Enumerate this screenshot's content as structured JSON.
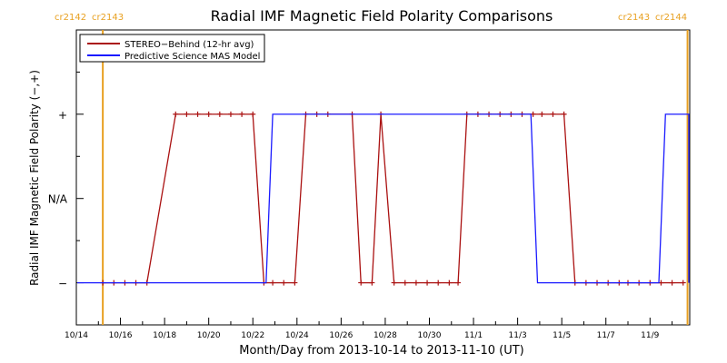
{
  "chart_data": {
    "type": "line",
    "title": "Radial IMF Magnetic Field Polarity Comparisons",
    "xlabel": "Month/Day from 2013-10-14 to 2013-11-10 (UT)",
    "ylabel": "Radial IMF Magnetic Field Polarity (−,+)",
    "x_range_days": [
      0,
      27.8
    ],
    "x_ticks": [
      {
        "day": 0,
        "label": "10/14"
      },
      {
        "day": 2,
        "label": "10/16"
      },
      {
        "day": 4,
        "label": "10/18"
      },
      {
        "day": 6,
        "label": "10/20"
      },
      {
        "day": 8,
        "label": "10/22"
      },
      {
        "day": 10,
        "label": "10/24"
      },
      {
        "day": 12,
        "label": "10/26"
      },
      {
        "day": 14,
        "label": "10/28"
      },
      {
        "day": 16,
        "label": "10/30"
      },
      {
        "day": 18,
        "label": "11/1"
      },
      {
        "day": 20,
        "label": "11/3"
      },
      {
        "day": 22,
        "label": "11/5"
      },
      {
        "day": 24,
        "label": "11/7"
      },
      {
        "day": 26,
        "label": "11/9"
      }
    ],
    "y_ticks": [
      {
        "value": 1,
        "label": "+"
      },
      {
        "value": 0,
        "label": "N/A"
      },
      {
        "value": -1,
        "label": "−"
      }
    ],
    "ylim": [
      -1.5,
      2.0
    ],
    "carrington_markers": [
      {
        "day": 1.2,
        "label_left": "cr2142",
        "label_right": "cr2143",
        "color": "#e8a020"
      },
      {
        "day": 27.7,
        "label_left": "cr2143",
        "label_right": "cr2144",
        "color": "#e8a020"
      }
    ],
    "legend_position": "top-left",
    "series": [
      {
        "name": "STEREO−Behind (12-hr avg)",
        "color": "#aa1111",
        "markers": true,
        "x": [
          1.2,
          1.7,
          2.2,
          2.7,
          3.2,
          4.5,
          5.0,
          5.5,
          6.0,
          6.5,
          7.0,
          7.5,
          8.0,
          8.5,
          8.9,
          9.4,
          9.9,
          10.4,
          10.9,
          11.4,
          12.5,
          12.9,
          13.4,
          13.8,
          14.4,
          14.9,
          15.4,
          15.9,
          16.4,
          16.9,
          17.3,
          17.7,
          18.2,
          18.7,
          19.2,
          19.7,
          20.2,
          20.7,
          21.1,
          21.6,
          22.1,
          22.6,
          23.1,
          23.6,
          24.1,
          24.6,
          25.0,
          25.5,
          26.0,
          26.5,
          27.0,
          27.5
        ],
        "y": [
          -1,
          -1,
          -1,
          -1,
          -1,
          1,
          1,
          1,
          1,
          1,
          1,
          1,
          1,
          -1,
          -1,
          -1,
          -1,
          1,
          1,
          1,
          1,
          -1,
          -1,
          1,
          -1,
          -1,
          -1,
          -1,
          -1,
          -1,
          -1,
          1,
          1,
          1,
          1,
          1,
          1,
          1,
          1,
          1,
          1,
          -1,
          -1,
          -1,
          -1,
          -1,
          -1,
          -1,
          -1,
          -1,
          -1,
          -1
        ]
      },
      {
        "name": "Predictive Science MAS Model",
        "color": "#1a1aff",
        "markers": false,
        "x": [
          0,
          8.6,
          8.9,
          20.6,
          20.9,
          26.4,
          26.7,
          28.3,
          28.5
        ],
        "y": [
          -1,
          -1,
          1,
          1,
          -1,
          -1,
          1,
          1,
          -1
        ]
      }
    ]
  }
}
